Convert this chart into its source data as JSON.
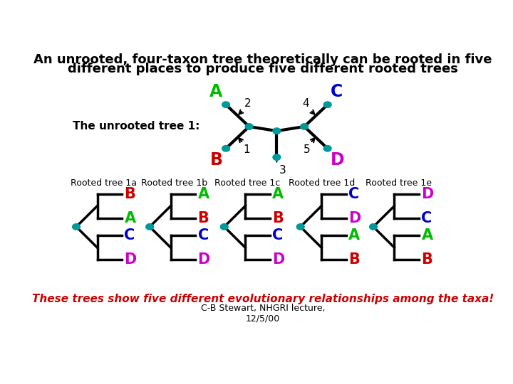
{
  "title_line1": "An unrooted, four-taxon tree theoretically can be rooted in five",
  "title_line2": "different places to produce five different rooted trees",
  "unrooted_label": "The unrooted tree 1:",
  "taxon_colors": {
    "A": "#00bb00",
    "B": "#cc0000",
    "C": "#0000cc",
    "D": "#cc00cc"
  },
  "node_color": "#009999",
  "line_color": "#000000",
  "rooted_labels": [
    "Rooted tree 1a",
    "Rooted tree 1b",
    "Rooted tree 1c",
    "Rooted tree 1d",
    "Rooted tree 1e"
  ],
  "rooted_trees": [
    [
      "B",
      "A",
      "C",
      "D"
    ],
    [
      "A",
      "B",
      "C",
      "D"
    ],
    [
      "A",
      "B",
      "C",
      "D"
    ],
    [
      "C",
      "D",
      "A",
      "B"
    ],
    [
      "D",
      "C",
      "A",
      "B"
    ]
  ],
  "italic_text": "These trees show five different evolutionary relationships among the taxa!",
  "italic_color": "#cc0000",
  "footnote": "C-B Stewart, NHGRI lecture,\n12/5/00",
  "bg_color": "#ffffff"
}
